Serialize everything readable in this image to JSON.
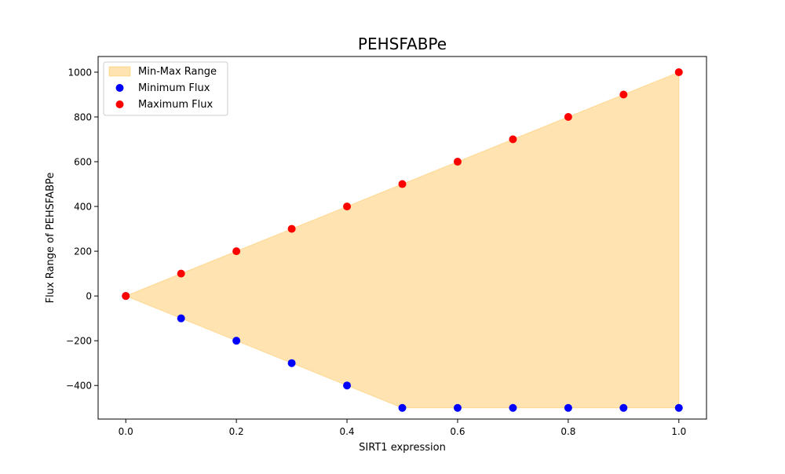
{
  "chart_data": {
    "type": "scatter",
    "title": "PEHSFABPe",
    "xlabel": "SIRT1 expression",
    "ylabel": "Flux Range of PEHSFABPe",
    "xlim": [
      -0.05,
      1.05
    ],
    "ylim": [
      -550,
      1070
    ],
    "xticks": [
      0.0,
      0.2,
      0.4,
      0.6,
      0.8,
      1.0
    ],
    "xtick_labels": [
      "0.0",
      "0.2",
      "0.4",
      "0.6",
      "0.8",
      "1.0"
    ],
    "yticks": [
      -400,
      -200,
      0,
      200,
      400,
      600,
      800,
      1000
    ],
    "ytick_labels": [
      "−400",
      "−200",
      "0",
      "200",
      "400",
      "600",
      "800",
      "1000"
    ],
    "grid": false,
    "legend_position": "top-left",
    "x": [
      0.0,
      0.1,
      0.2,
      0.3,
      0.4,
      0.5,
      0.6,
      0.7,
      0.8,
      0.9,
      1.0
    ],
    "series": [
      {
        "name": "Min-Max Range",
        "kind": "fill_between",
        "color": "#ffa500",
        "opacity": 0.3
      },
      {
        "name": "Minimum Flux",
        "kind": "scatter",
        "color": "#0000ff",
        "values": [
          0,
          -100,
          -200,
          -300,
          -400,
          -500,
          -500,
          -500,
          -500,
          -500,
          -500
        ]
      },
      {
        "name": "Maximum Flux",
        "kind": "scatter",
        "color": "#ff0000",
        "values": [
          0,
          100,
          200,
          300,
          400,
          500,
          600,
          700,
          800,
          900,
          1000
        ]
      }
    ]
  }
}
